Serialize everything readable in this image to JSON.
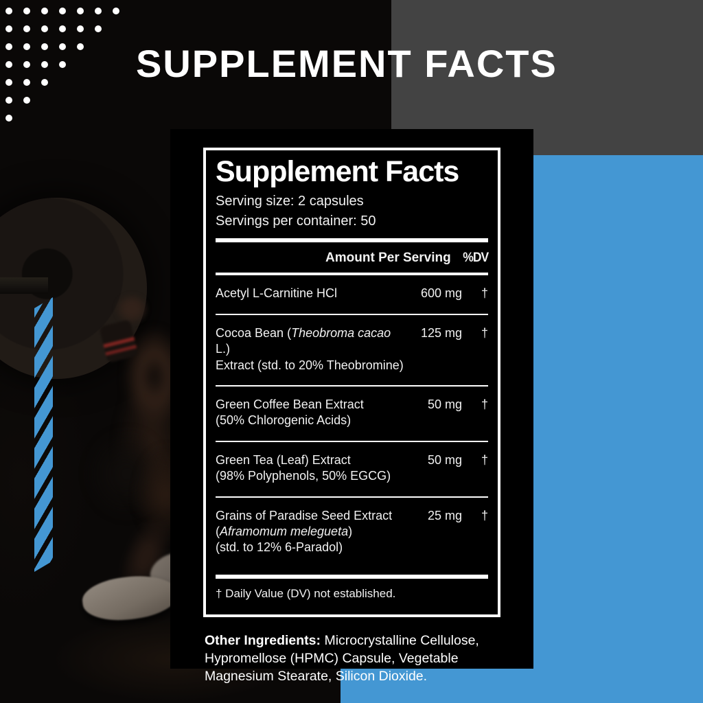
{
  "page_title": "SUPPLEMENT FACTS",
  "colors": {
    "accent_blue": "#4497d3",
    "block_gray": "#434343",
    "panel_black": "#000000",
    "text_white": "#ffffff"
  },
  "decor": {
    "dot_rows": [
      7,
      6,
      5,
      4,
      3,
      2,
      1
    ]
  },
  "label": {
    "title": "Supplement Facts",
    "serving_size": "Serving size: 2 capsules",
    "servings_per_container": "Servings per container: 50",
    "amount_header": "Amount Per Serving",
    "dv_header": "%DV",
    "rows": [
      {
        "lines": [
          [
            {
              "t": "Acetyl L-Carnitine HCl"
            }
          ]
        ],
        "amount": "600 mg",
        "dv": "†"
      },
      {
        "lines": [
          [
            {
              "t": "Cocoa Bean ("
            },
            {
              "t": "Theobroma cacao",
              "i": true
            },
            {
              "t": " L.)"
            }
          ],
          [
            {
              "t": "Extract (std. to 20% Theobromine)"
            }
          ]
        ],
        "amount": "125 mg",
        "dv": "†"
      },
      {
        "lines": [
          [
            {
              "t": "Green Coffee Bean Extract"
            }
          ],
          [
            {
              "t": "(50% Chlorogenic Acids)"
            }
          ]
        ],
        "amount": "50 mg",
        "dv": "†"
      },
      {
        "lines": [
          [
            {
              "t": "Green Tea (Leaf) Extract"
            }
          ],
          [
            {
              "t": "(98% Polyphenols, 50% EGCG)"
            }
          ]
        ],
        "amount": "50 mg",
        "dv": "†"
      },
      {
        "lines": [
          [
            {
              "t": "Grains of Paradise Seed Extract"
            }
          ],
          [
            {
              "t": "("
            },
            {
              "t": "Aframomum melegueta",
              "i": true
            },
            {
              "t": ")"
            }
          ],
          [
            {
              "t": "(std. to 12% 6-Paradol)"
            }
          ]
        ],
        "amount": "25 mg",
        "dv": "†"
      }
    ],
    "footnote": "† Daily Value (DV) not established.",
    "other_ingredients_label": "Other Ingredients:",
    "other_ingredients_text": " Microcrystalline Cellulose, Hypromellose (HPMC) Capsule, Vegetable Magnesium Stearate, Silicon Dioxide."
  }
}
